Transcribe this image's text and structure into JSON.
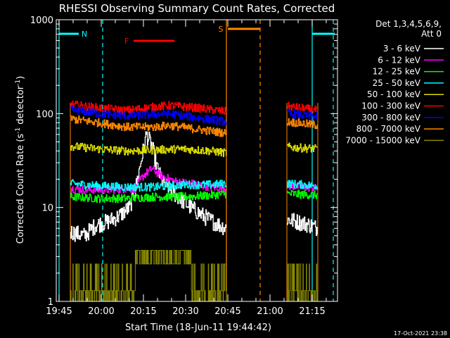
{
  "chart_data": {
    "type": "line",
    "title": "RHESSI Observing Summary Count Rates, Corrected",
    "xlabel": "Start Time (18-Jun-11 19:44:42)",
    "ylabel": "Corrected Count Rate (s",
    "ylabel_sup1": "-1",
    "ylabel_mid": " detector",
    "ylabel_sup2": "-1",
    "ylabel_end": ")",
    "y_scale": "log",
    "ylim": [
      1,
      1000
    ],
    "xlim_minutes_after_1944": [
      0,
      100
    ],
    "x_ticks": [
      {
        "label": "19:45",
        "min": 1
      },
      {
        "label": "20:00",
        "min": 16
      },
      {
        "label": "20:15",
        "min": 31
      },
      {
        "label": "20:30",
        "min": 46
      },
      {
        "label": "20:45",
        "min": 61
      },
      {
        "label": "21:00",
        "min": 76
      },
      {
        "label": "21:15",
        "min": 91
      }
    ],
    "y_ticks": [
      {
        "label": "1",
        "v": 1
      },
      {
        "label": "10",
        "v": 10
      },
      {
        "label": "100",
        "v": 100
      },
      {
        "label": "1000",
        "v": 1000
      }
    ],
    "legend": {
      "header1": "Det 1,3,4,5,6,9,",
      "header2": "Att 0",
      "placement": "right",
      "entries": [
        {
          "label": "3 - 6 keV",
          "color": "#ffffff"
        },
        {
          "label": "6 - 12 keV",
          "color": "#ff00ff"
        },
        {
          "label": "12 - 25 keV",
          "color": "#00ff00"
        },
        {
          "label": "25 - 50 keV",
          "color": "#00ffff"
        },
        {
          "label": "50 - 100 keV",
          "color": "#dddd00"
        },
        {
          "label": "100 - 300 keV",
          "color": "#ff0000"
        },
        {
          "label": "300 - 800 keV",
          "color": "#0000ff"
        },
        {
          "label": "800 - 7000 keV",
          "color": "#ff8800"
        },
        {
          "label": "7000 - 15000 keV",
          "color": "#888800"
        }
      ]
    },
    "segments": [
      [
        5,
        60.5
      ],
      [
        82,
        93
      ]
    ],
    "series": [
      {
        "name": "3 - 6 keV",
        "color": "#ffffff",
        "flare": "peak",
        "points": [
          [
            5,
            5.5
          ],
          [
            10,
            5
          ],
          [
            14,
            6.5
          ],
          [
            18,
            7
          ],
          [
            22,
            8
          ],
          [
            26,
            10
          ],
          [
            28,
            15
          ],
          [
            30,
            30
          ],
          [
            32,
            60
          ],
          [
            34,
            45
          ],
          [
            36,
            25
          ],
          [
            38,
            18
          ],
          [
            42,
            14
          ],
          [
            46,
            11
          ],
          [
            50,
            9
          ],
          [
            54,
            7.5
          ],
          [
            58,
            6.5
          ],
          [
            60.5,
            6
          ],
          [
            82,
            7.5
          ],
          [
            86,
            7
          ],
          [
            90,
            6.5
          ],
          [
            93,
            6
          ]
        ]
      },
      {
        "name": "6 - 12 keV",
        "color": "#ff00ff",
        "flare": "bump",
        "points": [
          [
            5,
            16
          ],
          [
            10,
            15.5
          ],
          [
            20,
            15.5
          ],
          [
            28,
            16
          ],
          [
            31,
            22
          ],
          [
            34,
            26
          ],
          [
            37,
            22
          ],
          [
            42,
            19
          ],
          [
            48,
            18
          ],
          [
            55,
            16.5
          ],
          [
            60.5,
            16
          ],
          [
            82,
            17
          ],
          [
            93,
            16
          ]
        ]
      },
      {
        "name": "12 - 25 keV",
        "color": "#00ff00",
        "flare": "none",
        "points": [
          [
            5,
            13
          ],
          [
            15,
            12.5
          ],
          [
            25,
            12.5
          ],
          [
            35,
            13
          ],
          [
            45,
            13
          ],
          [
            55,
            13.5
          ],
          [
            60.5,
            14
          ],
          [
            82,
            14
          ],
          [
            93,
            13.5
          ]
        ]
      },
      {
        "name": "25 - 50 keV",
        "color": "#00ffff",
        "flare": "none",
        "points": [
          [
            5,
            18
          ],
          [
            15,
            17
          ],
          [
            25,
            16.5
          ],
          [
            35,
            16.5
          ],
          [
            45,
            17.5
          ],
          [
            55,
            17.5
          ],
          [
            60.5,
            18
          ],
          [
            82,
            18
          ],
          [
            93,
            17
          ]
        ]
      },
      {
        "name": "50 - 100 keV",
        "color": "#dddd00",
        "flare": "none",
        "points": [
          [
            5,
            45
          ],
          [
            15,
            42
          ],
          [
            25,
            40
          ],
          [
            35,
            41
          ],
          [
            45,
            42
          ],
          [
            55,
            40
          ],
          [
            60.5,
            38
          ],
          [
            82,
            44
          ],
          [
            93,
            42
          ]
        ]
      },
      {
        "name": "100 - 300 keV",
        "color": "#ff0000",
        "flare": "none",
        "points": [
          [
            5,
            125
          ],
          [
            15,
            115
          ],
          [
            25,
            108
          ],
          [
            35,
            118
          ],
          [
            40,
            122
          ],
          [
            50,
            115
          ],
          [
            60.5,
            105
          ],
          [
            82,
            120
          ],
          [
            93,
            108
          ]
        ]
      },
      {
        "name": "300 - 800 keV",
        "color": "#0000ff",
        "flare": "none",
        "points": [
          [
            5,
            110
          ],
          [
            15,
            100
          ],
          [
            25,
            94
          ],
          [
            35,
            98
          ],
          [
            40,
            100
          ],
          [
            50,
            90
          ],
          [
            60.5,
            82
          ],
          [
            82,
            100
          ],
          [
            93,
            92
          ]
        ]
      },
      {
        "name": "800 - 7000 keV",
        "color": "#ff8800",
        "flare": "none",
        "points": [
          [
            5,
            88
          ],
          [
            15,
            80
          ],
          [
            25,
            72
          ],
          [
            35,
            72
          ],
          [
            40,
            75
          ],
          [
            50,
            68
          ],
          [
            60.5,
            62
          ],
          [
            82,
            82
          ],
          [
            93,
            75
          ]
        ]
      }
    ],
    "attenuator_7000": {
      "name": "7000 - 15000 keV",
      "color": "#888800",
      "levels": [
        1.3,
        2.5,
        3.5
      ]
    },
    "annotations": [
      {
        "label": "N",
        "color": "#00ffff",
        "bar_min": [
          1,
          8
        ],
        "dashed_min": 16.5,
        "solid_min": 1
      },
      {
        "label": "F",
        "color": "#ff0000",
        "bar_min": [
          27.5,
          42
        ]
      },
      {
        "label": "S",
        "color": "#ff8800",
        "bar_min": [
          61,
          72.5
        ],
        "dashed_min": 72.5,
        "solid_min": 60.5
      },
      {
        "label": "",
        "color": "#00ffff",
        "bar_min": [
          91,
          99
        ],
        "dashed_min": 98.5,
        "solid_min": 91
      }
    ],
    "timestamp": "17-Oct-2021 23:38"
  }
}
